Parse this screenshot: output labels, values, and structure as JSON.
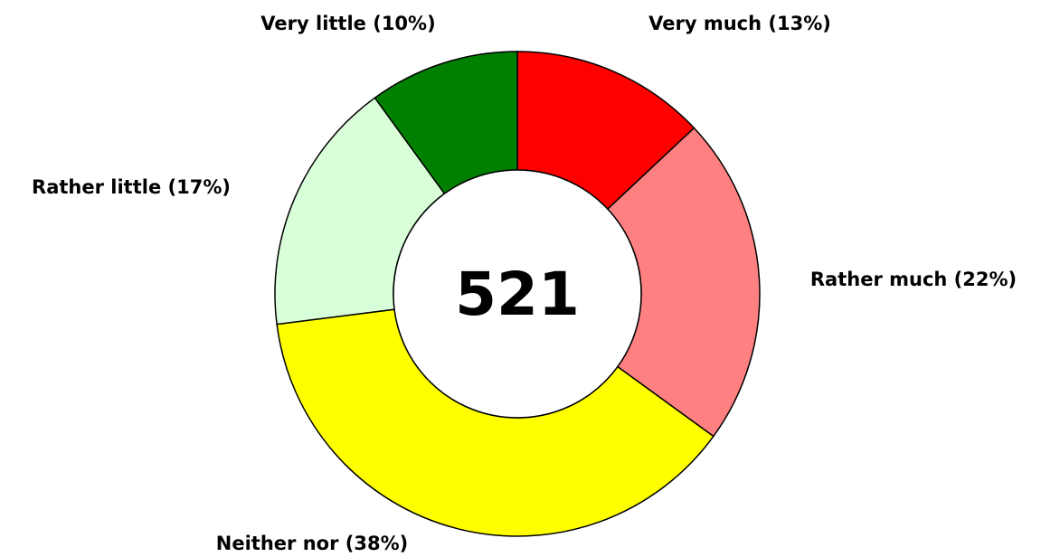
{
  "chart_data": {
    "type": "donut",
    "values": [
      13,
      22,
      38,
      17,
      10
    ],
    "value_labels": [
      "Very much (13%)",
      "Rather much (22%)",
      "Neither nor (38%)",
      "Rather little (17%)",
      "Very little (10%)"
    ],
    "colors": [
      "#ff0000",
      "#ff8080",
      "#ffff00",
      "#d9ffd9",
      "#008000"
    ],
    "total": 521
  }
}
